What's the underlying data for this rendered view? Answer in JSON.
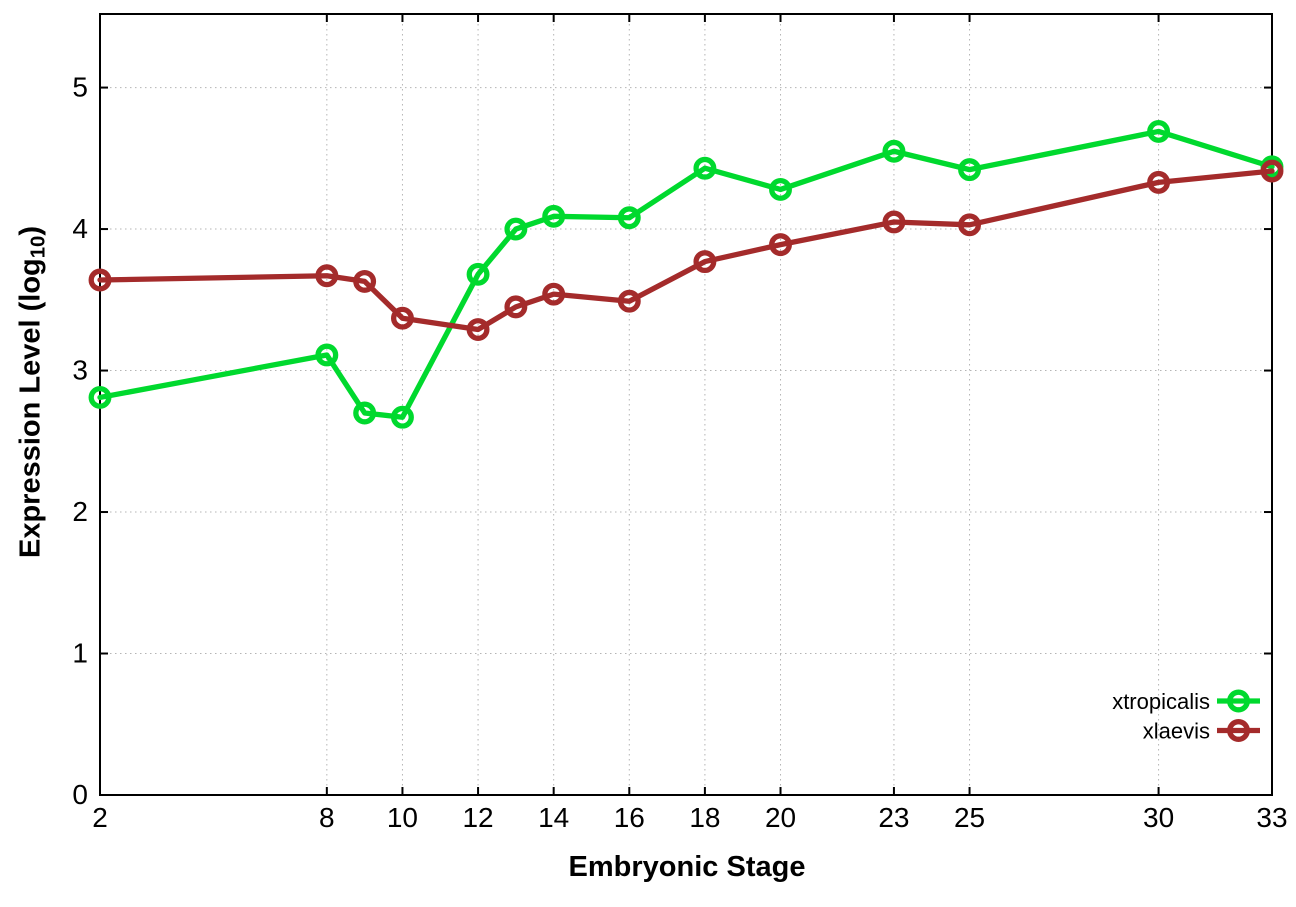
{
  "chart_data": {
    "type": "line",
    "title": "",
    "xlabel": "Embryonic Stage",
    "ylabel": "Expression Level (log10)",
    "ylabel_parts": {
      "main": "Expression Level (log",
      "sub": "10",
      "close": ")"
    },
    "x": [
      2,
      8,
      9,
      10,
      12,
      13,
      14,
      16,
      18,
      20,
      23,
      25,
      30,
      33
    ],
    "series": [
      {
        "name": "xtropicalis",
        "color": "#00d92e",
        "values": [
          2.81,
          3.11,
          2.7,
          2.67,
          3.68,
          4.0,
          4.09,
          4.08,
          4.43,
          4.28,
          4.55,
          4.42,
          4.69,
          4.44
        ]
      },
      {
        "name": "xlaevis",
        "color": "#a42b2b",
        "values": [
          3.64,
          3.67,
          3.63,
          3.37,
          3.29,
          3.45,
          3.54,
          3.49,
          3.77,
          3.89,
          4.05,
          4.03,
          4.33,
          4.41
        ]
      }
    ],
    "x_ticks": [
      2,
      8,
      10,
      12,
      14,
      16,
      18,
      20,
      23,
      25,
      30,
      33
    ],
    "y_ticks": [
      0,
      1,
      2,
      3,
      4,
      5
    ],
    "xlim": [
      2,
      33
    ],
    "ylim": [
      0,
      5.52
    ],
    "grid": true,
    "legend_position": "bottom-right",
    "marker": "open-circle",
    "colors": {
      "frame": "#000000",
      "grid": "#b4b4b4",
      "tick_text": "#000000"
    }
  }
}
